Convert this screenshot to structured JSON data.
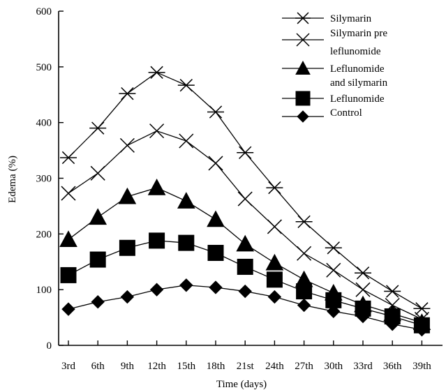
{
  "chart_data": {
    "type": "line",
    "xlabel": "Time (days)",
    "ylabel": "Edema (%)",
    "ylim": [
      0,
      600
    ],
    "yticks": [
      0,
      100,
      200,
      300,
      400,
      500,
      600
    ],
    "categories": [
      "3rd",
      "6th",
      "9th",
      "12th",
      "15th",
      "18th",
      "21st",
      "24th",
      "27th",
      "30th",
      "33rd",
      "36th",
      "39th"
    ],
    "legend_position": "top-right",
    "grid": false,
    "series": [
      {
        "name": "Silymarin",
        "marker": "asterisk",
        "values": [
          337,
          390,
          452,
          490,
          467,
          419,
          346,
          283,
          222,
          175,
          130,
          97,
          66
        ]
      },
      {
        "name": "Silymarin pre leflunomide",
        "legend_lines": [
          "Silymarin pre",
          "leflunomide"
        ],
        "marker": "cross",
        "values": [
          273,
          309,
          359,
          385,
          367,
          327,
          263,
          213,
          165,
          135,
          100,
          72,
          47
        ]
      },
      {
        "name": "Leflunomide and silymarin",
        "legend_lines": [
          "Leflunomide",
          "and silymarin"
        ],
        "marker": "triangle",
        "values": [
          190,
          230,
          267,
          283,
          259,
          226,
          182,
          148,
          118,
          94,
          73,
          57,
          41
        ]
      },
      {
        "name": "Leflunomide",
        "marker": "square",
        "values": [
          126,
          154,
          175,
          188,
          184,
          166,
          141,
          118,
          97,
          81,
          66,
          52,
          36
        ]
      },
      {
        "name": "Control",
        "marker": "diamond",
        "values": [
          65,
          78,
          87,
          100,
          108,
          104,
          97,
          87,
          72,
          61,
          52,
          38,
          28
        ]
      }
    ]
  }
}
